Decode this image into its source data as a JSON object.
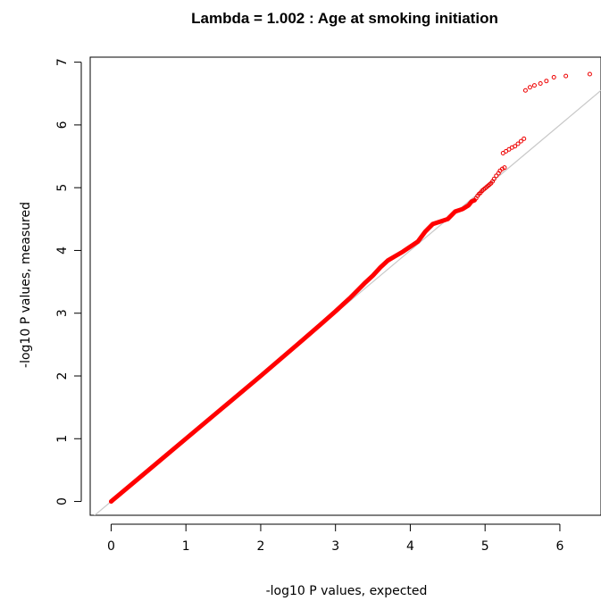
{
  "chart_data": {
    "type": "scatter",
    "title": "Lambda = 1.002 : Age at smoking initiation",
    "xlabel": "-log10 P values, expected",
    "ylabel": "-log10 P values, measured",
    "xlim": [
      -0.28,
      6.55
    ],
    "ylim": [
      -0.22,
      7.08
    ],
    "x_ticks": [
      0,
      1,
      2,
      3,
      4,
      5,
      6
    ],
    "y_ticks": [
      0,
      1,
      2,
      3,
      4,
      5,
      6,
      7
    ],
    "x_tick_labels": [
      "0",
      "1",
      "2",
      "3",
      "4",
      "5",
      "6"
    ],
    "y_tick_labels": [
      "0",
      "1",
      "2",
      "3",
      "4",
      "5",
      "6",
      "7"
    ],
    "grid": false,
    "reference_line": {
      "slope": 1,
      "intercept": 0,
      "color": "#c8c8c8"
    },
    "point_color": "#ee0000",
    "line_color": "#ff0000",
    "dense_segment": [
      [
        0.0,
        0.0
      ],
      [
        0.5,
        0.5
      ],
      [
        1.0,
        1.0
      ],
      [
        1.5,
        1.5
      ],
      [
        2.0,
        2.0
      ],
      [
        2.5,
        2.51
      ],
      [
        2.8,
        2.82
      ],
      [
        3.0,
        3.03
      ],
      [
        3.2,
        3.25
      ],
      [
        3.3,
        3.37
      ],
      [
        3.4,
        3.49
      ],
      [
        3.5,
        3.6
      ],
      [
        3.6,
        3.73
      ],
      [
        3.7,
        3.84
      ],
      [
        3.8,
        3.91
      ],
      [
        3.9,
        3.98
      ],
      [
        4.0,
        4.06
      ],
      [
        4.1,
        4.14
      ],
      [
        4.2,
        4.3
      ],
      [
        4.3,
        4.42
      ],
      [
        4.4,
        4.46
      ],
      [
        4.5,
        4.5
      ],
      [
        4.6,
        4.62
      ],
      [
        4.7,
        4.66
      ],
      [
        4.78,
        4.72
      ],
      [
        4.82,
        4.78
      ],
      [
        4.86,
        4.8
      ]
    ],
    "points": [
      [
        4.88,
        4.83
      ],
      [
        4.9,
        4.87
      ],
      [
        4.92,
        4.9
      ],
      [
        4.94,
        4.92
      ],
      [
        4.96,
        4.95
      ],
      [
        4.98,
        4.97
      ],
      [
        5.0,
        4.99
      ],
      [
        5.02,
        5.01
      ],
      [
        5.04,
        5.03
      ],
      [
        5.06,
        5.05
      ],
      [
        5.08,
        5.07
      ],
      [
        5.1,
        5.1
      ],
      [
        5.12,
        5.14
      ],
      [
        5.15,
        5.19
      ],
      [
        5.18,
        5.23
      ],
      [
        5.2,
        5.27
      ],
      [
        5.23,
        5.3
      ],
      [
        5.26,
        5.32
      ],
      [
        5.24,
        5.55
      ],
      [
        5.28,
        5.58
      ],
      [
        5.32,
        5.61
      ],
      [
        5.36,
        5.64
      ],
      [
        5.4,
        5.66
      ],
      [
        5.44,
        5.7
      ],
      [
        5.48,
        5.74
      ],
      [
        5.52,
        5.78
      ],
      [
        5.54,
        6.55
      ],
      [
        5.6,
        6.6
      ],
      [
        5.66,
        6.63
      ],
      [
        5.74,
        6.66
      ],
      [
        5.82,
        6.7
      ],
      [
        5.92,
        6.76
      ],
      [
        6.08,
        6.78
      ],
      [
        6.4,
        6.81
      ]
    ]
  }
}
